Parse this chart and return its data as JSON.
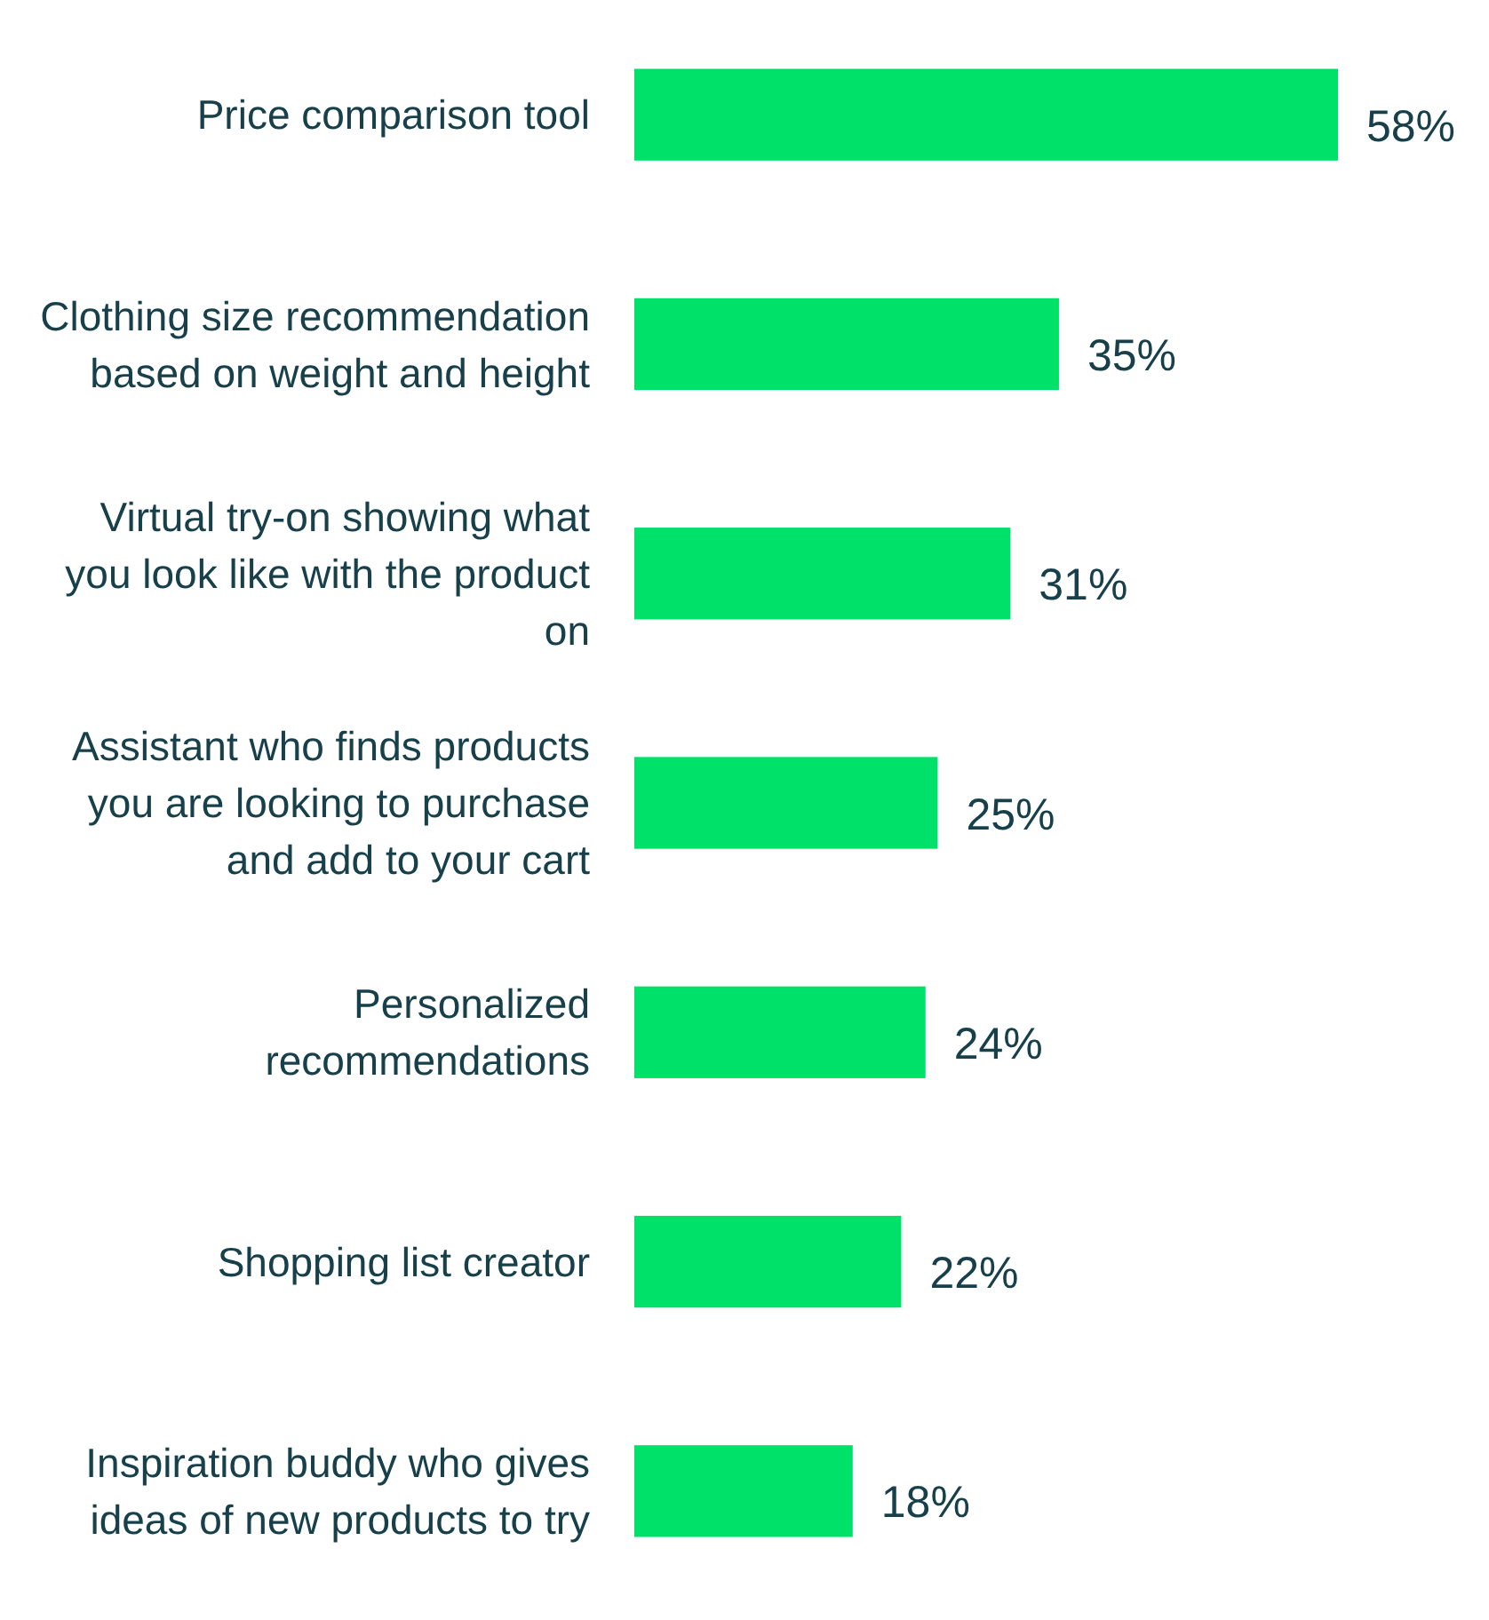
{
  "chart_data": {
    "type": "bar",
    "orientation": "horizontal",
    "categories": [
      "Price comparison tool",
      "Clothing size recommendation based on weight and height",
      "Virtual try-on showing what you look like with the product on",
      "Assistant who finds products you are looking to purchase and add to your cart",
      "Personalized recommendations",
      "Shopping list creator",
      "Inspiration buddy who gives ideas of new products to try"
    ],
    "values": [
      58,
      35,
      31,
      25,
      24,
      22,
      18
    ],
    "value_labels": [
      "58%",
      "35%",
      "31%",
      "25%",
      "24%",
      "22%",
      "18%"
    ],
    "color": "#00e16a"
  }
}
